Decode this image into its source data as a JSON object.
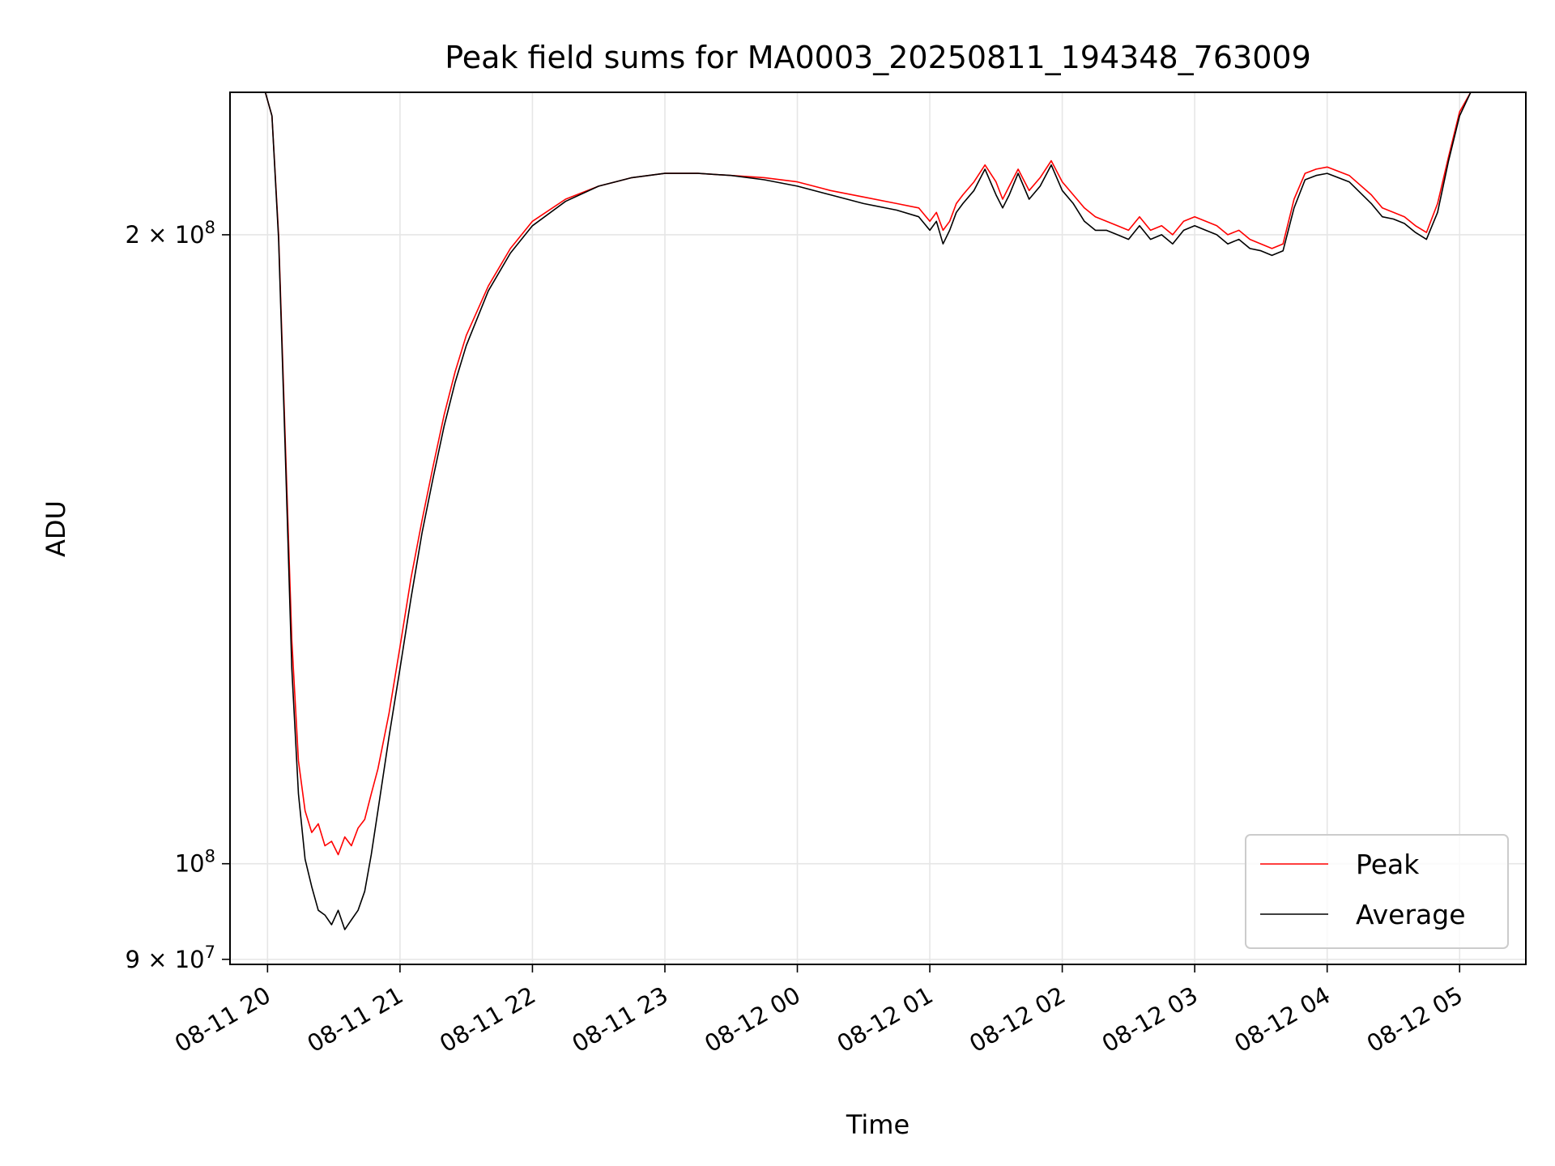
{
  "chart_data": {
    "type": "line",
    "title": "Peak field sums for MA0003_20250811_194348_763009",
    "xlabel": "Time",
    "ylabel": "ADU",
    "yscale": "log",
    "grid": true,
    "legend_position": "lower-right",
    "xlim": [
      "2025-08-11 19:43",
      "2025-08-12 05:30"
    ],
    "ylim": [
      89500000,
      234000000
    ],
    "x_ticks": [
      {
        "value": "2025-08-11 20:00",
        "label": "08-11 20"
      },
      {
        "value": "2025-08-11 21:00",
        "label": "08-11 21"
      },
      {
        "value": "2025-08-11 22:00",
        "label": "08-11 22"
      },
      {
        "value": "2025-08-11 23:00",
        "label": "08-11 23"
      },
      {
        "value": "2025-08-12 00:00",
        "label": "08-12 00"
      },
      {
        "value": "2025-08-12 01:00",
        "label": "08-12 01"
      },
      {
        "value": "2025-08-12 02:00",
        "label": "08-12 02"
      },
      {
        "value": "2025-08-12 03:00",
        "label": "08-12 03"
      },
      {
        "value": "2025-08-12 04:00",
        "label": "08-12 04"
      },
      {
        "value": "2025-08-12 05:00",
        "label": "08-12 05"
      }
    ],
    "y_ticks": [
      {
        "value": 90000000,
        "label_base": "9 × 10",
        "label_exp": "7"
      },
      {
        "value": 100000000,
        "label_base": "10",
        "label_exp": "8"
      },
      {
        "value": 200000000,
        "label_base": "2 × 10",
        "label_exp": "8"
      }
    ],
    "series": [
      {
        "name": "Peak",
        "color": "#ff0000",
        "x": [
          "2025-08-11 19:43",
          "2025-08-11 19:59",
          "2025-08-11 20:02",
          "2025-08-11 20:05",
          "2025-08-11 20:08",
          "2025-08-11 20:11",
          "2025-08-11 20:14",
          "2025-08-11 20:17",
          "2025-08-11 20:20",
          "2025-08-11 20:23",
          "2025-08-11 20:26",
          "2025-08-11 20:29",
          "2025-08-11 20:32",
          "2025-08-11 20:35",
          "2025-08-11 20:38",
          "2025-08-11 20:41",
          "2025-08-11 20:44",
          "2025-08-11 20:47",
          "2025-08-11 20:50",
          "2025-08-11 20:55",
          "2025-08-11 21:00",
          "2025-08-11 21:05",
          "2025-08-11 21:10",
          "2025-08-11 21:15",
          "2025-08-11 21:20",
          "2025-08-11 21:25",
          "2025-08-11 21:30",
          "2025-08-11 21:40",
          "2025-08-11 21:50",
          "2025-08-11 22:00",
          "2025-08-11 22:15",
          "2025-08-11 22:30",
          "2025-08-11 22:45",
          "2025-08-11 23:00",
          "2025-08-11 23:15",
          "2025-08-11 23:30",
          "2025-08-11 23:45",
          "2025-08-12 00:00",
          "2025-08-12 00:15",
          "2025-08-12 00:30",
          "2025-08-12 00:45",
          "2025-08-12 00:55",
          "2025-08-12 01:00",
          "2025-08-12 01:03",
          "2025-08-12 01:06",
          "2025-08-12 01:09",
          "2025-08-12 01:12",
          "2025-08-12 01:15",
          "2025-08-12 01:20",
          "2025-08-12 01:25",
          "2025-08-12 01:30",
          "2025-08-12 01:33",
          "2025-08-12 01:36",
          "2025-08-12 01:40",
          "2025-08-12 01:45",
          "2025-08-12 01:50",
          "2025-08-12 01:55",
          "2025-08-12 02:00",
          "2025-08-12 02:05",
          "2025-08-12 02:10",
          "2025-08-12 02:15",
          "2025-08-12 02:20",
          "2025-08-12 02:25",
          "2025-08-12 02:30",
          "2025-08-12 02:35",
          "2025-08-12 02:40",
          "2025-08-12 02:45",
          "2025-08-12 02:50",
          "2025-08-12 02:55",
          "2025-08-12 03:00",
          "2025-08-12 03:05",
          "2025-08-12 03:10",
          "2025-08-12 03:15",
          "2025-08-12 03:20",
          "2025-08-12 03:25",
          "2025-08-12 03:30",
          "2025-08-12 03:35",
          "2025-08-12 03:40",
          "2025-08-12 03:45",
          "2025-08-12 03:50",
          "2025-08-12 03:55",
          "2025-08-12 04:00",
          "2025-08-12 04:10",
          "2025-08-12 04:20",
          "2025-08-12 04:25",
          "2025-08-12 04:30",
          "2025-08-12 04:35",
          "2025-08-12 04:40",
          "2025-08-12 04:45",
          "2025-08-12 04:50",
          "2025-08-12 04:55",
          "2025-08-12 05:00",
          "2025-08-12 05:05",
          "2025-08-12 05:30"
        ],
        "y": [
          234000000,
          234000000,
          228000000,
          200000000,
          160000000,
          128000000,
          112000000,
          106000000,
          103500000,
          104500000,
          102000000,
          102500000,
          101000000,
          103000000,
          102000000,
          104000000,
          105000000,
          108000000,
          111000000,
          118000000,
          127000000,
          137000000,
          146000000,
          155000000,
          164000000,
          172000000,
          179000000,
          189000000,
          197000000,
          203000000,
          208000000,
          211000000,
          213000000,
          214000000,
          214000000,
          213500000,
          213000000,
          212000000,
          210000000,
          208500000,
          207000000,
          206000000,
          203000000,
          205000000,
          201000000,
          203000000,
          207000000,
          209000000,
          212000000,
          216000000,
          212000000,
          208000000,
          211000000,
          215000000,
          210000000,
          213000000,
          217000000,
          212000000,
          209000000,
          206000000,
          204000000,
          203000000,
          202000000,
          201000000,
          204000000,
          201000000,
          202000000,
          200000000,
          203000000,
          204000000,
          203000000,
          202000000,
          200000000,
          201000000,
          199000000,
          198000000,
          197000000,
          198000000,
          208000000,
          214000000,
          215000000,
          215500000,
          213500000,
          209000000,
          206000000,
          205000000,
          204000000,
          202000000,
          200500000,
          207000000,
          218000000,
          229000000,
          234000000,
          234000000
        ]
      },
      {
        "name": "Average",
        "color": "#000000",
        "x": [
          "2025-08-11 19:43",
          "2025-08-11 19:59",
          "2025-08-11 20:02",
          "2025-08-11 20:05",
          "2025-08-11 20:08",
          "2025-08-11 20:11",
          "2025-08-11 20:14",
          "2025-08-11 20:17",
          "2025-08-11 20:20",
          "2025-08-11 20:23",
          "2025-08-11 20:26",
          "2025-08-11 20:29",
          "2025-08-11 20:32",
          "2025-08-11 20:35",
          "2025-08-11 20:38",
          "2025-08-11 20:41",
          "2025-08-11 20:44",
          "2025-08-11 20:47",
          "2025-08-11 20:50",
          "2025-08-11 20:55",
          "2025-08-11 21:00",
          "2025-08-11 21:05",
          "2025-08-11 21:10",
          "2025-08-11 21:15",
          "2025-08-11 21:20",
          "2025-08-11 21:25",
          "2025-08-11 21:30",
          "2025-08-11 21:40",
          "2025-08-11 21:50",
          "2025-08-11 22:00",
          "2025-08-11 22:15",
          "2025-08-11 22:30",
          "2025-08-11 22:45",
          "2025-08-11 23:00",
          "2025-08-11 23:15",
          "2025-08-11 23:30",
          "2025-08-11 23:45",
          "2025-08-12 00:00",
          "2025-08-12 00:15",
          "2025-08-12 00:30",
          "2025-08-12 00:45",
          "2025-08-12 00:55",
          "2025-08-12 01:00",
          "2025-08-12 01:03",
          "2025-08-12 01:06",
          "2025-08-12 01:09",
          "2025-08-12 01:12",
          "2025-08-12 01:15",
          "2025-08-12 01:20",
          "2025-08-12 01:25",
          "2025-08-12 01:30",
          "2025-08-12 01:33",
          "2025-08-12 01:36",
          "2025-08-12 01:40",
          "2025-08-12 01:45",
          "2025-08-12 01:50",
          "2025-08-12 01:55",
          "2025-08-12 02:00",
          "2025-08-12 02:05",
          "2025-08-12 02:10",
          "2025-08-12 02:15",
          "2025-08-12 02:20",
          "2025-08-12 02:25",
          "2025-08-12 02:30",
          "2025-08-12 02:35",
          "2025-08-12 02:40",
          "2025-08-12 02:45",
          "2025-08-12 02:50",
          "2025-08-12 02:55",
          "2025-08-12 03:00",
          "2025-08-12 03:05",
          "2025-08-12 03:10",
          "2025-08-12 03:15",
          "2025-08-12 03:20",
          "2025-08-12 03:25",
          "2025-08-12 03:30",
          "2025-08-12 03:35",
          "2025-08-12 03:40",
          "2025-08-12 03:45",
          "2025-08-12 03:50",
          "2025-08-12 03:55",
          "2025-08-12 04:00",
          "2025-08-12 04:10",
          "2025-08-12 04:20",
          "2025-08-12 04:25",
          "2025-08-12 04:30",
          "2025-08-12 04:35",
          "2025-08-12 04:40",
          "2025-08-12 04:45",
          "2025-08-12 04:50",
          "2025-08-12 04:55",
          "2025-08-12 05:00",
          "2025-08-12 05:05",
          "2025-08-12 05:30"
        ],
        "y": [
          234000000,
          234000000,
          228000000,
          199000000,
          158000000,
          124000000,
          108000000,
          100500000,
          97500000,
          95000000,
          94500000,
          93500000,
          95000000,
          93000000,
          94000000,
          95000000,
          97000000,
          101000000,
          106000000,
          115000000,
          124000000,
          134000000,
          144000000,
          153000000,
          162000000,
          170000000,
          177000000,
          188000000,
          196000000,
          202000000,
          207500000,
          211000000,
          213000000,
          214000000,
          214000000,
          213500000,
          212500000,
          211000000,
          209000000,
          207000000,
          205500000,
          204000000,
          201000000,
          203000000,
          198000000,
          201000000,
          205000000,
          207000000,
          210000000,
          215000000,
          209000000,
          206000000,
          209000000,
          214000000,
          208000000,
          211000000,
          216000000,
          210000000,
          207000000,
          203000000,
          201000000,
          201000000,
          200000000,
          199000000,
          202000000,
          199000000,
          200000000,
          198000000,
          201000000,
          202000000,
          201000000,
          200000000,
          198000000,
          199000000,
          197000000,
          196500000,
          195500000,
          196500000,
          206000000,
          212500000,
          213500000,
          214000000,
          212000000,
          207000000,
          204000000,
          203500000,
          202500000,
          200500000,
          199000000,
          205000000,
          217000000,
          228000000,
          234000000,
          234000000
        ]
      }
    ]
  }
}
